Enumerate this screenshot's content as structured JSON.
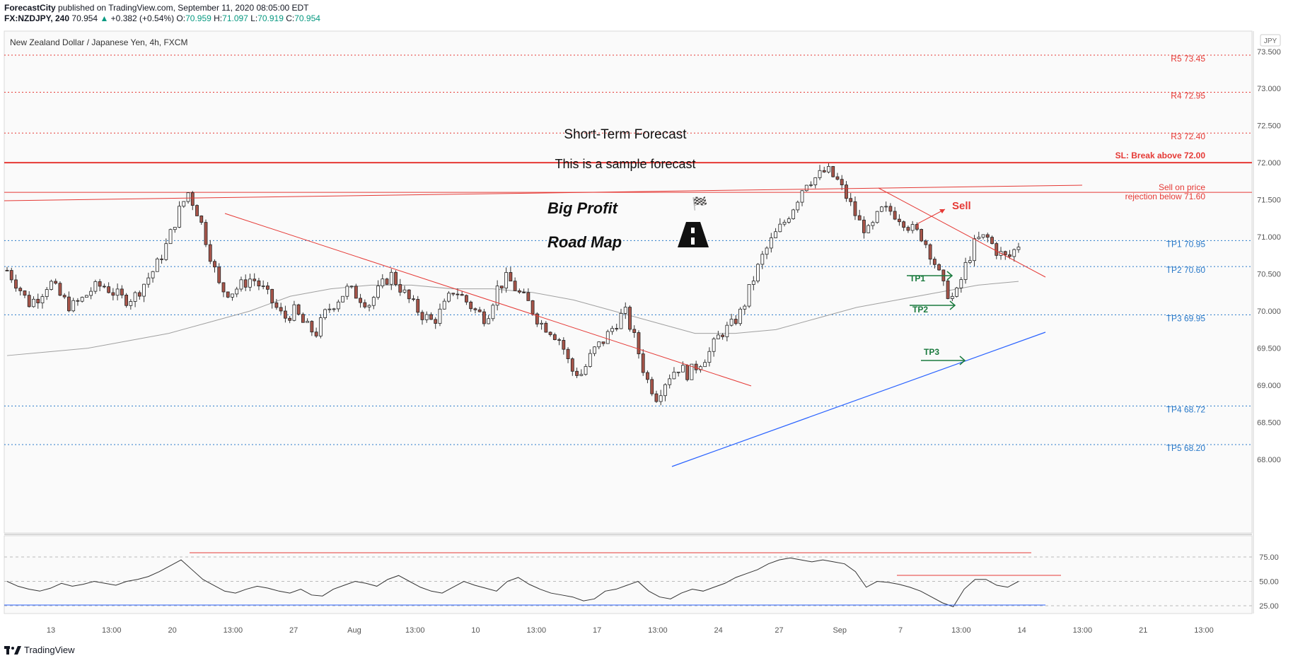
{
  "header": {
    "publisher": "ForecastCity",
    "published_text": "published on TradingView.com, September 11, 2020 08:05:00 EDT",
    "symbol": "FX:NZDJPY, 240",
    "last": "70.954",
    "change": "+0.382 (+0.54%)",
    "o_label": "O:",
    "o": "70.959",
    "h_label": "H:",
    "h": "71.097",
    "l_label": "L:",
    "l": "70.919",
    "c_label": "C:",
    "c": "70.954"
  },
  "footer": {
    "brand": "TradingView"
  },
  "colors": {
    "up": "#089981",
    "red": "#e53935",
    "blue": "#2962ff",
    "tp": "#2979c9",
    "green": "#1b7a3e"
  },
  "chart_data": {
    "type": "candlestick",
    "title": "New Zealand Dollar / Japanese Yen, 4h, FXCM",
    "currency": "JPY",
    "ylim": [
      68.0,
      73.6
    ],
    "y_ticks": [
      "73.500",
      "73.000",
      "72.500",
      "72.000",
      "71.500",
      "71.000",
      "70.500",
      "70.000",
      "69.500",
      "69.000",
      "68.500",
      "68.000"
    ],
    "x_ticks": [
      "13",
      "13:00",
      "20",
      "13:00",
      "27",
      "Aug",
      "13:00",
      "10",
      "13:00",
      "17",
      "13:00",
      "24",
      "27",
      "Sep",
      "7",
      "13:00",
      "14",
      "13:00",
      "21",
      "13:00"
    ],
    "close_path": [
      70.55,
      70.35,
      70.1,
      70.2,
      70.4,
      70.2,
      70.05,
      70.15,
      70.3,
      70.35,
      70.25,
      70.15,
      70.2,
      70.4,
      70.6,
      70.9,
      71.3,
      71.6,
      71.3,
      70.8,
      70.3,
      70.25,
      70.35,
      70.45,
      70.3,
      70.1,
      69.9,
      70.0,
      69.8,
      69.7,
      70.0,
      70.15,
      70.3,
      70.2,
      70.1,
      70.3,
      70.5,
      70.3,
      70.1,
      69.95,
      69.85,
      70.05,
      70.3,
      70.15,
      70.0,
      69.9,
      70.3,
      70.45,
      70.25,
      70.1,
      69.85,
      69.75,
      69.6,
      69.2,
      69.15,
      69.45,
      69.6,
      69.8,
      70.0,
      69.6,
      69.1,
      68.85,
      69.1,
      69.25,
      69.15,
      69.3,
      69.45,
      69.7,
      69.8,
      70.0,
      70.4,
      70.75,
      71.0,
      71.2,
      71.45,
      71.75,
      71.8,
      71.9,
      71.75,
      71.5,
      71.2,
      71.05,
      71.35,
      71.35,
      71.25,
      71.1,
      71.0,
      70.7,
      70.3,
      70.15,
      70.6,
      70.95,
      71.0,
      70.8,
      70.7,
      70.9
    ],
    "ma_path": [
      69.4,
      69.45,
      69.5,
      69.6,
      69.7,
      69.85,
      70.0,
      70.2,
      70.3,
      70.35,
      70.35,
      70.3,
      70.3,
      70.25,
      70.15,
      70.0,
      69.85,
      69.7,
      69.7,
      69.75,
      69.9,
      70.05,
      70.15,
      70.25,
      70.35,
      70.4
    ],
    "levels": [
      {
        "label": "R5 73.45",
        "value": 73.45,
        "kind": "resistance"
      },
      {
        "label": "R4 72.95",
        "value": 72.95,
        "kind": "resistance"
      },
      {
        "label": "R3 72.40",
        "value": 72.4,
        "kind": "resistance"
      },
      {
        "label": "SL: Break above 72.00",
        "value": 72.0,
        "kind": "stop"
      },
      {
        "label": "Sell on price",
        "label2": "rejection below 71.60",
        "value": 71.6,
        "kind": "sell"
      },
      {
        "label": "TP1 70.95",
        "value": 70.95,
        "kind": "tp"
      },
      {
        "label": "TP2 70.60",
        "value": 70.6,
        "kind": "tp"
      },
      {
        "label": "TP3 69.95",
        "value": 69.95,
        "kind": "tp"
      },
      {
        "label": "TP4 68.72",
        "value": 68.72,
        "kind": "tp"
      },
      {
        "label": "TP5 68.20",
        "value": 68.2,
        "kind": "tp"
      }
    ],
    "annotations": {
      "short_term": "Short-Term Forecast",
      "sample": "This is a sample forecast",
      "big_profit": "Big Profit",
      "road_map": "Road Map",
      "sell": "Sell",
      "tp1": "TP1",
      "tp2": "TP2",
      "tp3": "TP3"
    },
    "rsi": {
      "y_ticks": [
        "75.00",
        "50.00",
        "25.00"
      ],
      "path": [
        50,
        45,
        42,
        40,
        43,
        48,
        45,
        47,
        50,
        48,
        46,
        50,
        52,
        55,
        60,
        66,
        72,
        62,
        52,
        46,
        40,
        38,
        42,
        45,
        43,
        40,
        38,
        42,
        36,
        35,
        42,
        46,
        50,
        48,
        45,
        52,
        56,
        50,
        44,
        40,
        38,
        44,
        50,
        46,
        43,
        40,
        50,
        54,
        47,
        42,
        38,
        36,
        34,
        30,
        32,
        40,
        42,
        46,
        50,
        40,
        34,
        32,
        38,
        42,
        40,
        44,
        48,
        54,
        58,
        62,
        68,
        72,
        74,
        72,
        70,
        72,
        70,
        68,
        60,
        44,
        50,
        49,
        47,
        44,
        40,
        34,
        28,
        24,
        42,
        52,
        52,
        46,
        44,
        50
      ]
    }
  }
}
